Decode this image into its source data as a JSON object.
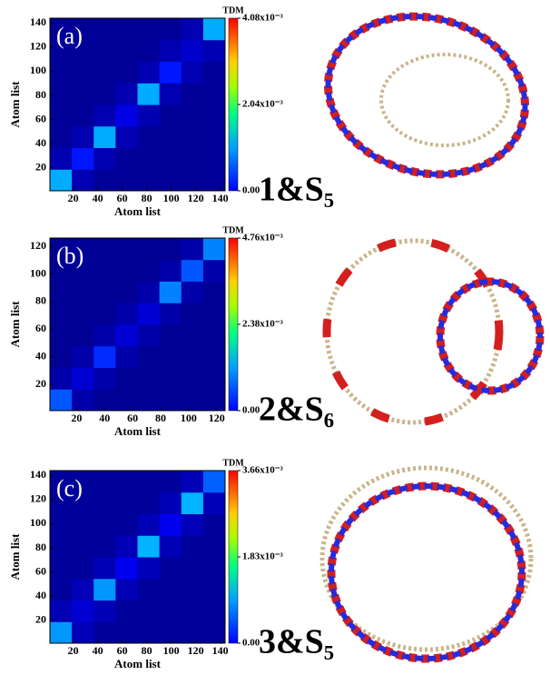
{
  "chart_data": [
    {
      "type": "heatmap",
      "panel_label": "(a)",
      "x_label": "Atom list",
      "y_label": "Atom list",
      "colorbar_title": "TDM",
      "structure_label": "1&S₅",
      "xlim": [
        1,
        144
      ],
      "ylim": [
        1,
        144
      ],
      "xticks": [
        20,
        40,
        60,
        80,
        100,
        120,
        140
      ],
      "yticks": [
        20,
        40,
        60,
        80,
        100,
        120,
        140
      ],
      "zlim": [
        0,
        0.00408
      ],
      "zticks": [
        {
          "value": 0,
          "label": "0.00"
        },
        {
          "value": 0.00204,
          "label": "2.04x10⁻³"
        },
        {
          "value": 0.00408,
          "label": "4.08x10⁻³"
        }
      ],
      "z": [
        [
          0.0012,
          0.0002,
          0.0001,
          0.0001,
          0.0001,
          0.0001,
          0.0001,
          0.0001
        ],
        [
          0.0002,
          0.0006,
          0.0002,
          0.0001,
          0.0001,
          0.0001,
          0.0001,
          0.0001
        ],
        [
          0.0001,
          0.0002,
          0.0012,
          0.0002,
          0.0001,
          0.0001,
          0.0001,
          0.0001
        ],
        [
          0.0001,
          0.0001,
          0.0002,
          0.0004,
          0.0002,
          0.0001,
          0.0001,
          0.0001
        ],
        [
          0.0001,
          0.0001,
          0.0001,
          0.0002,
          0.0012,
          0.0002,
          0.0001,
          0.0001
        ],
        [
          0.0001,
          0.0001,
          0.0001,
          0.0001,
          0.0002,
          0.0006,
          0.0002,
          0.0001
        ],
        [
          0.0001,
          0.0001,
          0.0001,
          0.0001,
          0.0001,
          0.0002,
          0.0003,
          0.0002
        ],
        [
          0.0001,
          0.0001,
          0.0001,
          0.0001,
          0.0001,
          0.0001,
          0.0002,
          0.0012
        ]
      ]
    },
    {
      "type": "heatmap",
      "panel_label": "(b)",
      "x_label": "Atom list",
      "y_label": "Atom list",
      "colorbar_title": "TDM",
      "structure_label": "2&S₆",
      "xlim": [
        1,
        126
      ],
      "ylim": [
        1,
        126
      ],
      "xticks": [
        20,
        40,
        60,
        80,
        100,
        120
      ],
      "yticks": [
        20,
        40,
        60,
        80,
        100,
        120
      ],
      "zlim": [
        0,
        0.00476
      ],
      "zticks": [
        {
          "value": 0,
          "label": "0.00"
        },
        {
          "value": 0.00238,
          "label": "2.38x10⁻³"
        },
        {
          "value": 0.00476,
          "label": "4.76x10⁻³"
        }
      ],
      "z": [
        [
          0.001,
          0.0002,
          0.0001,
          0.0001,
          0.0001,
          0.0001,
          0.0001,
          0.0001
        ],
        [
          0.0002,
          0.0004,
          0.0002,
          0.0001,
          0.0001,
          0.0001,
          0.0001,
          0.0001
        ],
        [
          0.0001,
          0.0002,
          0.0008,
          0.0002,
          0.0001,
          0.0001,
          0.0001,
          0.0001
        ],
        [
          0.0001,
          0.0001,
          0.0002,
          0.0004,
          0.0002,
          0.0001,
          0.0001,
          0.0001
        ],
        [
          0.0001,
          0.0001,
          0.0001,
          0.0002,
          0.0004,
          0.0002,
          0.0001,
          0.0001
        ],
        [
          0.0001,
          0.0001,
          0.0001,
          0.0001,
          0.0002,
          0.0012,
          0.0002,
          0.0001
        ],
        [
          0.0001,
          0.0001,
          0.0001,
          0.0001,
          0.0001,
          0.0002,
          0.001,
          0.0002
        ],
        [
          0.0001,
          0.0001,
          0.0001,
          0.0001,
          0.0001,
          0.0001,
          0.0002,
          0.0012
        ]
      ]
    },
    {
      "type": "heatmap",
      "panel_label": "(c)",
      "x_label": "Atom list",
      "y_label": "Atom list",
      "colorbar_title": "TDM",
      "structure_label": "3&S₅",
      "xlim": [
        1,
        144
      ],
      "ylim": [
        1,
        144
      ],
      "xticks": [
        20,
        40,
        60,
        80,
        100,
        120,
        140
      ],
      "yticks": [
        20,
        40,
        60,
        80,
        100,
        120,
        140
      ],
      "zlim": [
        0,
        0.00366
      ],
      "zticks": [
        {
          "value": 0,
          "label": "0.00"
        },
        {
          "value": 0.00183,
          "label": "1.83x10⁻³"
        },
        {
          "value": 0.00366,
          "label": "3.66x10⁻³"
        }
      ],
      "z": [
        [
          0.001,
          0.0002,
          0.0001,
          0.0001,
          0.0001,
          0.0001,
          0.0001,
          0.0001
        ],
        [
          0.0002,
          0.0003,
          0.0002,
          0.0001,
          0.0001,
          0.0001,
          0.0001,
          0.0001
        ],
        [
          0.0001,
          0.0002,
          0.001,
          0.0002,
          0.0001,
          0.0001,
          0.0001,
          0.0001
        ],
        [
          0.0001,
          0.0001,
          0.0002,
          0.0004,
          0.0002,
          0.0001,
          0.0001,
          0.0001
        ],
        [
          0.0001,
          0.0001,
          0.0001,
          0.0002,
          0.0011,
          0.0002,
          0.0001,
          0.0001
        ],
        [
          0.0001,
          0.0001,
          0.0001,
          0.0001,
          0.0002,
          0.0004,
          0.0002,
          0.0001
        ],
        [
          0.0001,
          0.0001,
          0.0001,
          0.0001,
          0.0001,
          0.0002,
          0.0011,
          0.0002
        ],
        [
          0.0001,
          0.0001,
          0.0001,
          0.0001,
          0.0001,
          0.0001,
          0.0002,
          0.0008
        ]
      ]
    }
  ]
}
